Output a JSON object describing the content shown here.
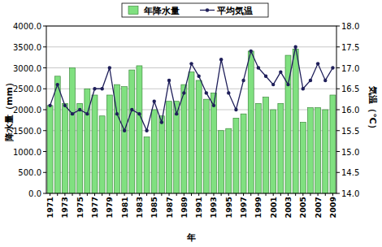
{
  "chart_data": {
    "type": "bar",
    "x_label": "年",
    "y_label": "降水量（mm）",
    "y2_label": "気温（℃）",
    "categories": [
      "1971",
      null,
      "1973",
      null,
      "1975",
      null,
      "1977",
      null,
      "1979",
      null,
      "1981",
      null,
      "1983",
      null,
      "1985",
      null,
      "1987",
      null,
      "1989",
      null,
      "1991",
      null,
      "1993",
      null,
      "1995",
      null,
      "1997",
      null,
      "1999",
      null,
      "2001",
      null,
      "2003",
      null,
      "2005",
      null,
      "2007",
      null,
      "2009"
    ],
    "series": [
      {
        "name": "年降水量",
        "type": "bar",
        "color": "#80e080",
        "values": [
          2100,
          2800,
          2150,
          3000,
          2150,
          2500,
          2350,
          1850,
          2350,
          2600,
          2550,
          2950,
          3050,
          1350,
          2000,
          1850,
          2200,
          2200,
          2600,
          2900,
          2700,
          2250,
          2400,
          1500,
          1550,
          1800,
          1900,
          3400,
          2150,
          2300,
          2000,
          2150,
          3300,
          3450,
          1700,
          2050,
          2050,
          2000,
          2350
        ]
      },
      {
        "name": "平均気温",
        "type": "line",
        "axis": "y2",
        "color": "#1f1f5a",
        "marker": "circle",
        "values": [
          16.1,
          16.6,
          16.1,
          15.9,
          16.0,
          15.9,
          16.5,
          16.5,
          17.0,
          15.9,
          15.5,
          16.0,
          15.9,
          15.5,
          16.2,
          15.7,
          16.7,
          15.9,
          16.4,
          17.1,
          16.8,
          16.4,
          16.1,
          17.2,
          16.4,
          16.0,
          16.7,
          17.4,
          17.0,
          16.8,
          16.6,
          16.9,
          16.6,
          17.5,
          16.5,
          16.7,
          17.1,
          16.7,
          17.0
        ]
      }
    ],
    "ylim": [
      0,
      4000
    ],
    "yticks": [
      {
        "value": 0,
        "label": "0.0"
      },
      {
        "value": 500,
        "label": "500.0"
      },
      {
        "value": 1000,
        "label": "1000.0"
      },
      {
        "value": 1500,
        "label": "1500.0"
      },
      {
        "value": 2000,
        "label": "2000.0"
      },
      {
        "value": 2500,
        "label": "2500.0"
      },
      {
        "value": 3000,
        "label": "3000.0"
      },
      {
        "value": 3500,
        "label": "3500.0"
      },
      {
        "value": 4000,
        "label": "4000.0"
      }
    ],
    "y2lim": [
      14,
      18
    ],
    "y2ticks": [
      {
        "value": 14,
        "label": "14.0"
      },
      14.5,
      {
        "value": 15,
        "label": "15.0"
      },
      15.5,
      {
        "value": 16,
        "label": "16.0"
      },
      16.5,
      {
        "value": 17,
        "label": "17.0"
      },
      17.5,
      {
        "value": 18,
        "label": "18.0"
      }
    ],
    "grid": true,
    "legend": "top"
  }
}
